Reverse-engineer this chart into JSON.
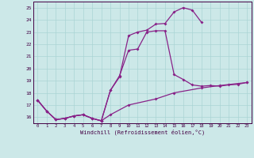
{
  "bg_color": "#cce8e8",
  "line_color": "#882288",
  "grid_color": "#aad4d4",
  "xlabel": "Windchill (Refroidissement éolien,°C)",
  "xlim": [
    -0.5,
    23.5
  ],
  "ylim": [
    15.5,
    25.5
  ],
  "xticks": [
    0,
    1,
    2,
    3,
    4,
    5,
    6,
    7,
    8,
    9,
    10,
    11,
    12,
    13,
    14,
    15,
    16,
    17,
    18,
    19,
    20,
    21,
    22,
    23
  ],
  "yticks": [
    16,
    17,
    18,
    19,
    20,
    21,
    22,
    23,
    24,
    25
  ],
  "line1_x": [
    0,
    1,
    2,
    3,
    4,
    5,
    6,
    7,
    8,
    9,
    10,
    11,
    12,
    13,
    14,
    15,
    16,
    17,
    18
  ],
  "line1_y": [
    17.4,
    16.5,
    15.8,
    15.9,
    16.1,
    16.2,
    15.9,
    15.7,
    18.2,
    19.3,
    22.7,
    23.0,
    23.15,
    23.65,
    23.7,
    24.65,
    25.0,
    24.8,
    23.8
  ],
  "line2_x": [
    0,
    1,
    2,
    3,
    4,
    5,
    6,
    7,
    8,
    9,
    10,
    11,
    12,
    13,
    14,
    15,
    16,
    17,
    18,
    19,
    20,
    21,
    22,
    23
  ],
  "line2_y": [
    17.4,
    16.5,
    15.8,
    15.9,
    16.1,
    16.2,
    15.9,
    15.7,
    18.2,
    19.4,
    21.5,
    21.6,
    23.0,
    23.1,
    23.1,
    19.5,
    19.1,
    18.65,
    18.55,
    18.6,
    18.55,
    18.65,
    18.7,
    18.85
  ],
  "line3_x": [
    0,
    1,
    2,
    3,
    4,
    5,
    6,
    7,
    8,
    10,
    13,
    15,
    18,
    20,
    23
  ],
  "line3_y": [
    17.4,
    16.5,
    15.8,
    15.9,
    16.1,
    16.2,
    15.9,
    15.7,
    16.2,
    17.0,
    17.5,
    18.0,
    18.4,
    18.6,
    18.85
  ],
  "markersize": 2.0,
  "linewidth": 0.9
}
